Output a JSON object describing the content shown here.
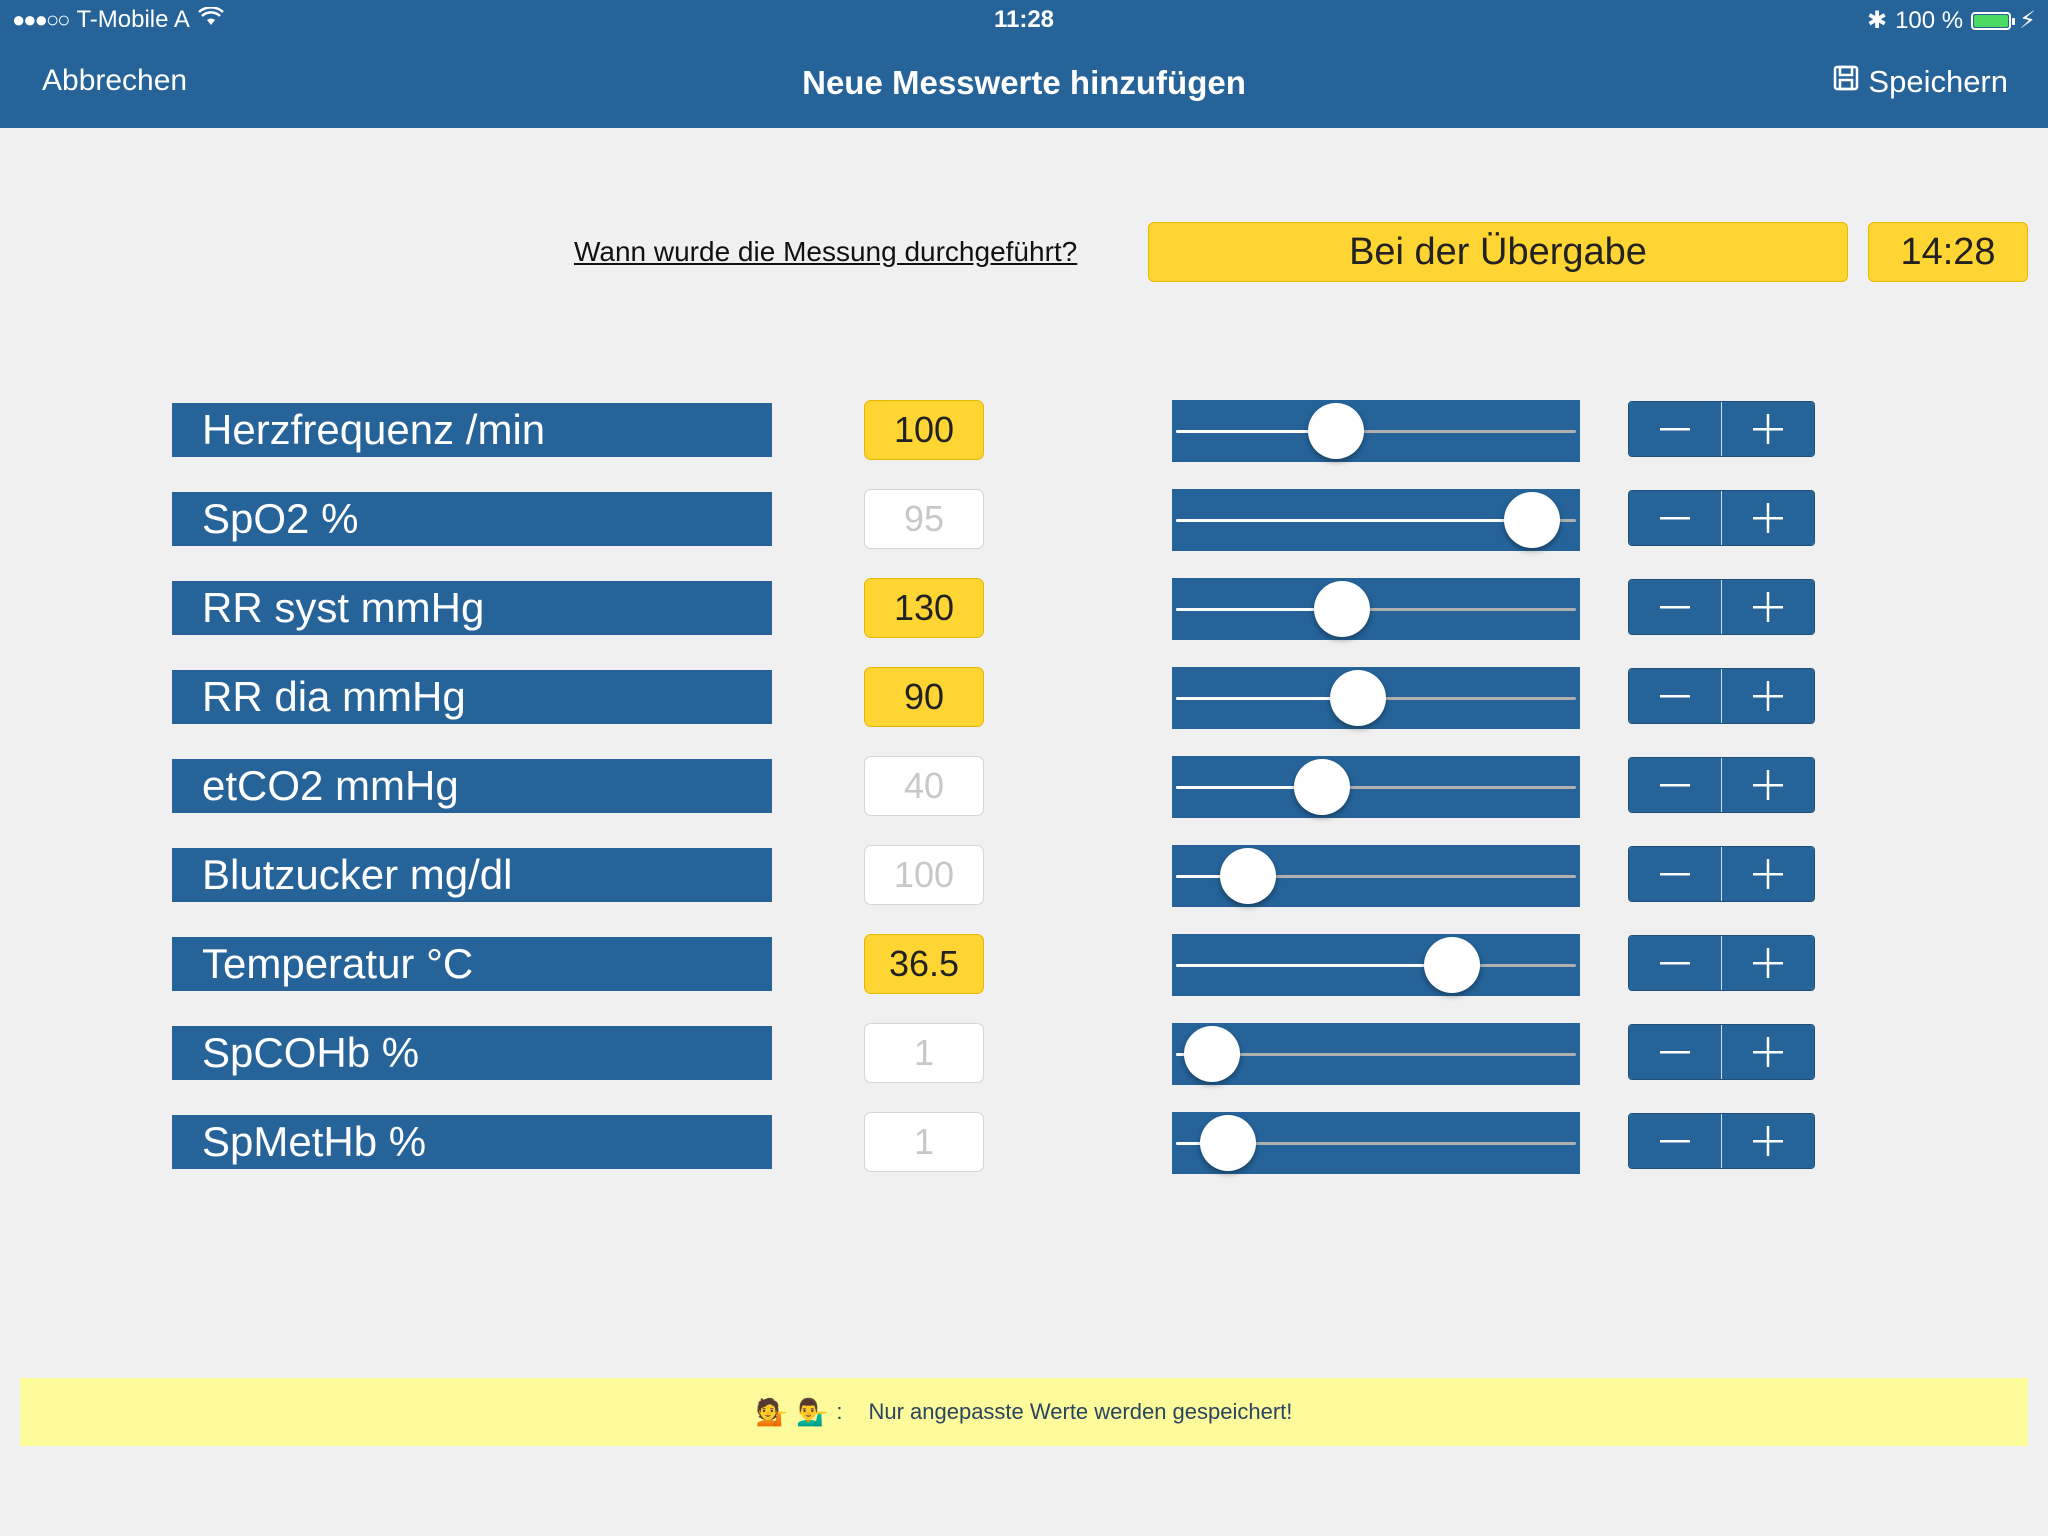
{
  "status_bar": {
    "signal_dots": "●●●○○",
    "carrier": "T-Mobile A",
    "time": "11:28",
    "battery_label": "100 %",
    "bluetooth_glyph": "✱"
  },
  "nav": {
    "cancel_label": "Abbrechen",
    "title": "Neue Messwerte hinzufügen",
    "save_label": "Speichern"
  },
  "timing": {
    "question": "Wann wurde die Messung durchgeführt?",
    "moment": "Bei der Übergabe",
    "time": "14:28"
  },
  "measurements": [
    {
      "label": "Herzfrequenz /min",
      "value": "100",
      "active": true,
      "slider_fraction": 0.4
    },
    {
      "label": "SpO2 %",
      "value": "95",
      "active": false,
      "slider_fraction": 0.89
    },
    {
      "label": "RR syst mmHg",
      "value": "130",
      "active": true,
      "slider_fraction": 0.415
    },
    {
      "label": "RR dia mmHg",
      "value": "90",
      "active": true,
      "slider_fraction": 0.455
    },
    {
      "label": "etCO2 mmHg",
      "value": "40",
      "active": false,
      "slider_fraction": 0.365
    },
    {
      "label": "Blutzucker mg/dl",
      "value": "100",
      "active": false,
      "slider_fraction": 0.18
    },
    {
      "label": "Temperatur °C",
      "value": "36.5",
      "active": true,
      "slider_fraction": 0.69
    },
    {
      "label": "SpCOHb %",
      "value": "1",
      "active": false,
      "slider_fraction": 0.09
    },
    {
      "label": "SpMetHb %",
      "value": "1",
      "active": false,
      "slider_fraction": 0.13
    }
  ],
  "hint": {
    "emoji_left": "💁",
    "emoji_right": "💁‍♂️",
    "separator": ":",
    "text": "Nur angepasste Werte werden gespeichert!"
  },
  "colors": {
    "primary": "#256399",
    "highlight": "#ffd533",
    "hint_background": "#fdfa9c",
    "background": "#f0f0f0"
  }
}
